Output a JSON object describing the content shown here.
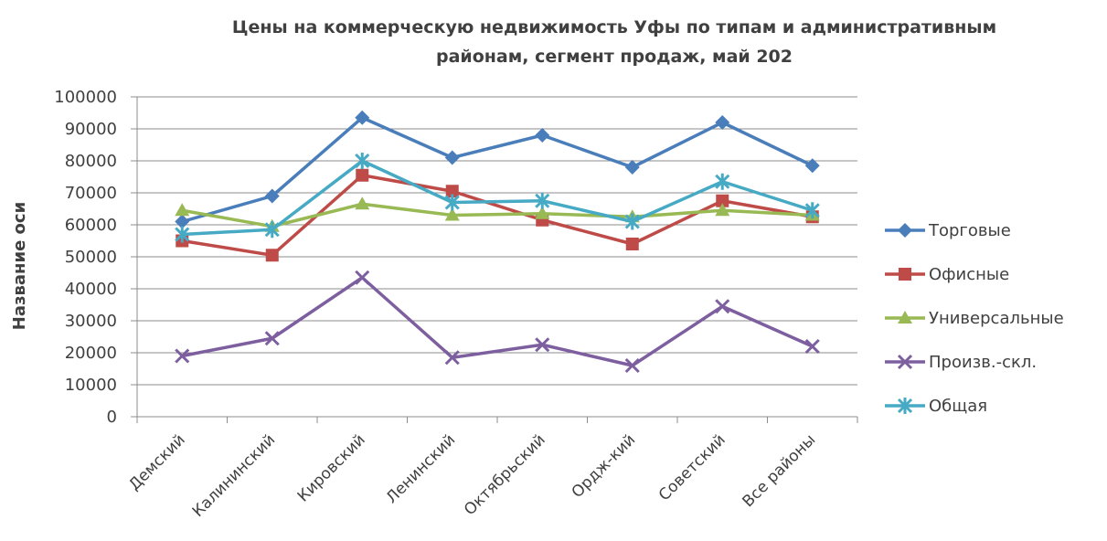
{
  "chart_data": {
    "type": "line",
    "title_lines": [
      "Цены на коммерческую недвижимость Уфы по типам и административным",
      "районам, сегмент продаж, май 202"
    ],
    "ylabel": "Название оси",
    "xlabel": "",
    "ylim": [
      0,
      100000
    ],
    "yticks": [
      "100000",
      "90000",
      "80000",
      "70000",
      "60000",
      "50000",
      "40000",
      "30000",
      "20000",
      "10000",
      "0"
    ],
    "ytick_values": [
      100000,
      90000,
      80000,
      70000,
      60000,
      50000,
      40000,
      30000,
      20000,
      10000,
      0
    ],
    "grid": true,
    "legend_position": "right",
    "categories": [
      "Демский",
      "Калининский",
      "Кировский",
      "Ленинский",
      "Октябрьский",
      "Ордж-кий",
      "Советский",
      "Все районы"
    ],
    "series": [
      {
        "name": "Торговые",
        "color": "#4a7ebb",
        "marker": "diamond",
        "values": [
          61000,
          69000,
          93500,
          81000,
          88000,
          78000,
          92000,
          78500
        ]
      },
      {
        "name": "Офисные",
        "color": "#be4b48",
        "marker": "square",
        "values": [
          55000,
          50500,
          75500,
          70500,
          61500,
          54000,
          67500,
          62500
        ]
      },
      {
        "name": "Универсальные",
        "color": "#98b954",
        "marker": "triangle",
        "values": [
          64500,
          59500,
          66500,
          63000,
          63500,
          62500,
          64500,
          63000
        ]
      },
      {
        "name": "Произв.-скл.",
        "color": "#7d5fa0",
        "marker": "x",
        "values": [
          19000,
          24500,
          43500,
          18500,
          22500,
          16000,
          34500,
          22000
        ]
      },
      {
        "name": "Общая",
        "color": "#46aac5",
        "marker": "star",
        "values": [
          57000,
          58500,
          80000,
          67000,
          67500,
          61000,
          73500,
          64500
        ]
      }
    ]
  }
}
